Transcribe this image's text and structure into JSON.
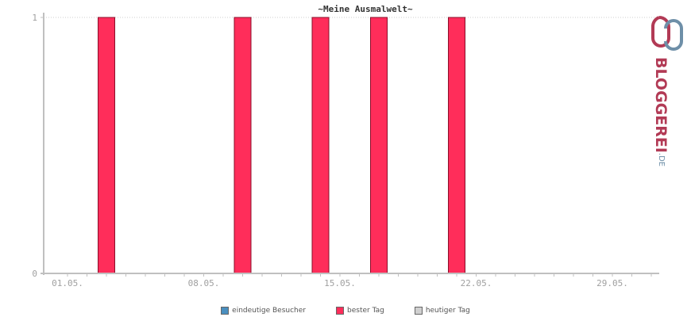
{
  "chart_data": {
    "type": "bar",
    "title": "~Meine Ausmalwelt~",
    "x_tick_labels": [
      "01.05.",
      "08.05.",
      "15.05.",
      "22.05.",
      "29.05."
    ],
    "days": [
      "01.05.",
      "02.05.",
      "03.05.",
      "04.05.",
      "05.05.",
      "06.05.",
      "07.05.",
      "08.05.",
      "09.05.",
      "10.05.",
      "11.05.",
      "12.05.",
      "13.05.",
      "14.05.",
      "15.05.",
      "16.05.",
      "17.05.",
      "18.05.",
      "19.05.",
      "20.05.",
      "21.05.",
      "22.05.",
      "23.05.",
      "24.05.",
      "25.05.",
      "26.05.",
      "27.05.",
      "28.05.",
      "29.05.",
      "30.05.",
      "31.05."
    ],
    "series": [
      {
        "name": "eindeutige Besucher",
        "color": "#4a8fbf",
        "values": [
          0,
          0,
          0,
          0,
          0,
          0,
          0,
          0,
          0,
          0,
          0,
          0,
          0,
          0,
          0,
          0,
          0,
          0,
          0,
          0,
          0,
          0,
          0,
          0,
          0,
          0,
          0,
          0,
          0,
          0,
          0
        ]
      },
      {
        "name": "bester Tag",
        "color": "#ff2d5a",
        "values": [
          0,
          0,
          1,
          0,
          0,
          0,
          0,
          0,
          0,
          1,
          0,
          0,
          0,
          1,
          0,
          0,
          1,
          0,
          0,
          0,
          1,
          0,
          0,
          0,
          0,
          0,
          0,
          0,
          0,
          0,
          0
        ]
      },
      {
        "name": "heutiger Tag",
        "color": "#d0d0d0",
        "values": [
          0,
          0,
          0,
          0,
          0,
          0,
          0,
          0,
          0,
          0,
          0,
          0,
          0,
          0,
          0,
          0,
          0,
          0,
          0,
          0,
          0,
          0,
          0,
          0,
          0,
          0,
          0,
          0,
          0,
          0,
          0
        ]
      }
    ],
    "y_ticks": [
      "0",
      "1"
    ],
    "ylim": [
      0,
      1
    ],
    "grid": true,
    "legend_position": "bottom"
  },
  "logo": {
    "text_main": "BLOGGEREI",
    "text_suffix": ".DE"
  },
  "colors": {
    "bar": "#ff2d5a",
    "bar_stroke": "#8a0f2a",
    "axis": "#c0c0c0",
    "grid": "#cccccc"
  }
}
